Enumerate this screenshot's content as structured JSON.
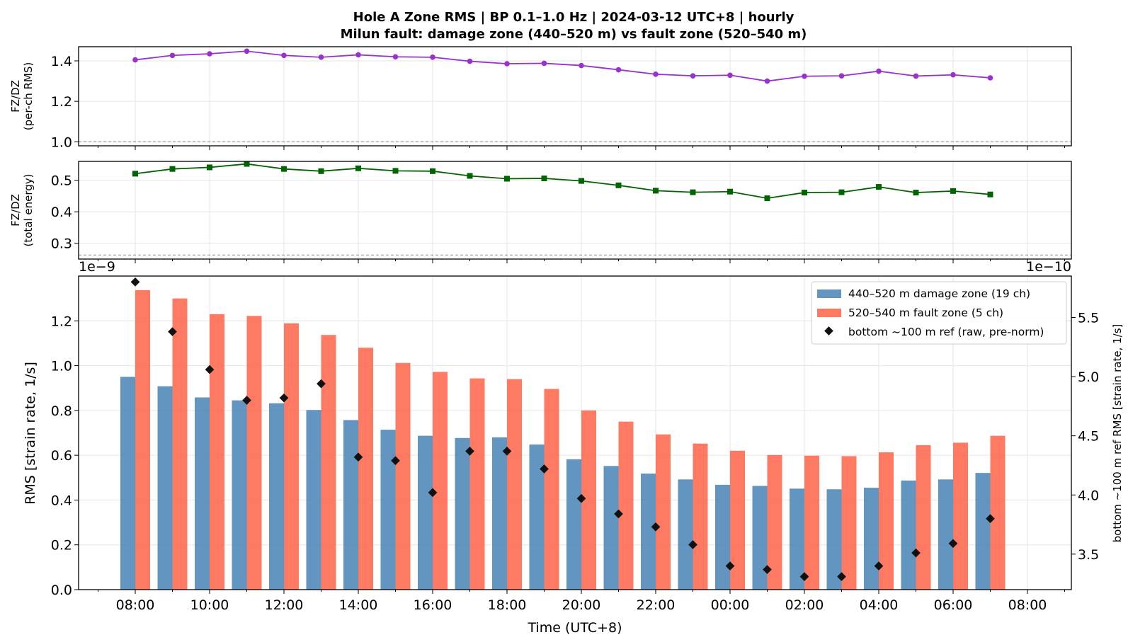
{
  "chart_data": [
    {
      "type": "line",
      "title_line1": "Hole A Zone RMS  |  BP 0.1–1.0 Hz  |  2024-03-12 UTC+8  |  hourly",
      "title_line2": "Milun fault: damage zone (440–520 m) vs fault zone (520–540 m)",
      "ylabel_line1": "FZ/DZ",
      "ylabel_line2": "(per-ch RMS)",
      "ylim": [
        0.98,
        1.47
      ],
      "yticks": [
        "1.0",
        "1.2",
        "1.4"
      ],
      "reference_line": 1.0,
      "color": "#9932CC",
      "marker": "circle",
      "values": [
        1.405,
        1.427,
        1.435,
        1.448,
        1.427,
        1.418,
        1.43,
        1.42,
        1.418,
        1.398,
        1.386,
        1.388,
        1.377,
        1.356,
        1.334,
        1.326,
        1.329,
        1.3,
        1.324,
        1.326,
        1.349,
        1.325,
        1.331,
        1.316
      ]
    },
    {
      "type": "line",
      "ylabel_line1": "FZ/DZ",
      "ylabel_line2": "(total energy)",
      "ylim": [
        0.25,
        0.56
      ],
      "yticks": [
        "0.3",
        "0.4",
        "0.5"
      ],
      "reference_line": 0.263,
      "color": "#006400",
      "marker": "square",
      "values": [
        0.521,
        0.536,
        0.541,
        0.552,
        0.536,
        0.529,
        0.538,
        0.53,
        0.529,
        0.514,
        0.505,
        0.506,
        0.498,
        0.484,
        0.467,
        0.462,
        0.464,
        0.443,
        0.461,
        0.462,
        0.479,
        0.461,
        0.466,
        0.455
      ]
    },
    {
      "type": "bar",
      "xlabel": "Time (UTC+8)",
      "ylabel": "RMS  [strain rate, 1/s]",
      "y_offset_label": "1e−9",
      "ylim": [
        0,
        1.4
      ],
      "yticks": [
        "0.0",
        "0.2",
        "0.4",
        "0.6",
        "0.8",
        "1.0",
        "1.2"
      ],
      "y2label": "bottom ~100 m ref RMS  [strain rate, 1/s]",
      "y2_offset_label": "1e−10",
      "y2lim": [
        3.2,
        5.85
      ],
      "y2ticks": [
        "3.5",
        "4.0",
        "4.5",
        "5.0",
        "5.5"
      ],
      "xticks": [
        "08:00",
        "10:00",
        "12:00",
        "14:00",
        "16:00",
        "18:00",
        "20:00",
        "22:00",
        "00:00",
        "02:00",
        "04:00",
        "06:00",
        "08:00"
      ],
      "series": [
        {
          "name": "440–520 m  damage zone (19 ch)",
          "color": "#4682B4",
          "values": [
            0.95,
            0.908,
            0.858,
            0.845,
            0.832,
            0.802,
            0.757,
            0.714,
            0.687,
            0.677,
            0.68,
            0.648,
            0.582,
            0.552,
            0.518,
            0.492,
            0.468,
            0.463,
            0.451,
            0.448,
            0.455,
            0.487,
            0.492,
            0.521
          ]
        },
        {
          "name": "520–540 m  fault zone (5 ch)",
          "color": "#FF6347",
          "values": [
            1.337,
            1.3,
            1.23,
            1.222,
            1.189,
            1.137,
            1.08,
            1.012,
            0.972,
            0.943,
            0.94,
            0.896,
            0.8,
            0.75,
            0.693,
            0.652,
            0.62,
            0.601,
            0.598,
            0.596,
            0.613,
            0.645,
            0.656,
            0.687
          ]
        },
        {
          "name": "bottom ~100 m ref (raw, pre-norm)",
          "axis": "right",
          "color": "#111111",
          "marker": "diamond",
          "values": [
            5.8,
            5.38,
            5.06,
            4.8,
            4.82,
            4.94,
            4.32,
            4.29,
            4.02,
            4.37,
            4.37,
            4.22,
            3.97,
            3.84,
            3.73,
            3.58,
            3.4,
            3.37,
            3.31,
            3.31,
            3.4,
            3.51,
            3.59,
            3.8
          ]
        }
      ]
    }
  ]
}
